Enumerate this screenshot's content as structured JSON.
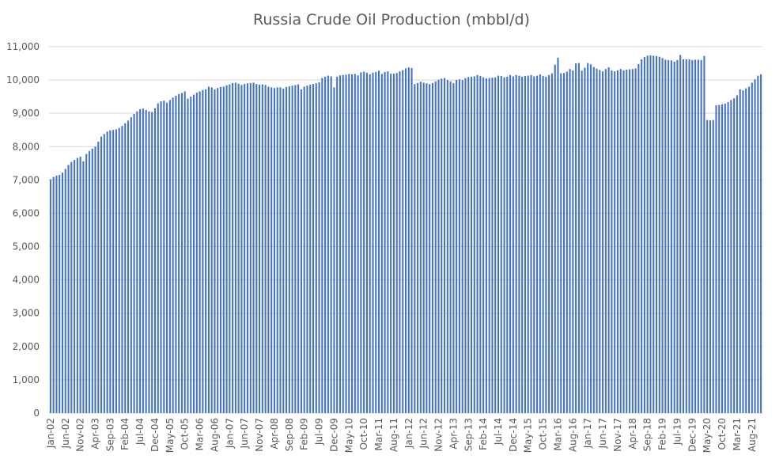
{
  "chart_data": {
    "type": "bar",
    "title": "Russia Crude Oil Production (mbbl/d)",
    "xlabel": "",
    "ylabel": "",
    "ylim": [
      0,
      11000
    ],
    "y_ticks": [
      0,
      1000,
      2000,
      3000,
      4000,
      5000,
      6000,
      7000,
      8000,
      9000,
      10000,
      11000
    ],
    "y_tick_labels": [
      "0",
      "1,000",
      "2,000",
      "3,000",
      "4,000",
      "5,000",
      "6,000",
      "7,000",
      "8,000",
      "9,000",
      "10,000",
      "11,000"
    ],
    "x_tick_labels": [
      "Jan-02",
      "Jun-02",
      "Nov-02",
      "Apr-03",
      "Sep-03",
      "Feb-04",
      "Jul-04",
      "Dec-04",
      "May-05",
      "Oct-05",
      "Mar-06",
      "Aug-06",
      "Jan-07",
      "Jun-07",
      "Nov-07",
      "Apr-08",
      "Sep-08",
      "Feb-09",
      "Jul-09",
      "Dec-09",
      "May-10",
      "Oct-10",
      "Mar-11",
      "Aug-11",
      "Jan-12",
      "Jun-12",
      "Nov-12",
      "Apr-13",
      "Sep-13",
      "Feb-14",
      "Jul-14",
      "Dec-14",
      "May-15",
      "Oct-15",
      "Mar-16",
      "Aug-16",
      "Jan-17",
      "Jun-17",
      "Nov-17",
      "Apr-18",
      "Sep-18",
      "Feb-19",
      "Jul-19",
      "Dec-19",
      "May-20",
      "Oct-20",
      "Mar-21",
      "Aug-21"
    ],
    "x_tick_every": 5,
    "grid": true,
    "legend": "none",
    "bar_color": "#4472c4",
    "grid_color": "#d9d9d9",
    "categories": [
      "Jan-02",
      "Feb-02",
      "Mar-02",
      "Apr-02",
      "May-02",
      "Jun-02",
      "Jul-02",
      "Aug-02",
      "Sep-02",
      "Oct-02",
      "Nov-02",
      "Dec-02",
      "Jan-03",
      "Feb-03",
      "Mar-03",
      "Apr-03",
      "May-03",
      "Jun-03",
      "Jul-03",
      "Aug-03",
      "Sep-03",
      "Oct-03",
      "Nov-03",
      "Dec-03",
      "Jan-04",
      "Feb-04",
      "Mar-04",
      "Apr-04",
      "May-04",
      "Jun-04",
      "Jul-04",
      "Aug-04",
      "Sep-04",
      "Oct-04",
      "Nov-04",
      "Dec-04",
      "Jan-05",
      "Feb-05",
      "Mar-05",
      "Apr-05",
      "May-05",
      "Jun-05",
      "Jul-05",
      "Aug-05",
      "Sep-05",
      "Oct-05",
      "Nov-05",
      "Dec-05",
      "Jan-06",
      "Feb-06",
      "Mar-06",
      "Apr-06",
      "May-06",
      "Jun-06",
      "Jul-06",
      "Aug-06",
      "Sep-06",
      "Oct-06",
      "Nov-06",
      "Dec-06",
      "Jan-07",
      "Feb-07",
      "Mar-07",
      "Apr-07",
      "May-07",
      "Jun-07",
      "Jul-07",
      "Aug-07",
      "Sep-07",
      "Oct-07",
      "Nov-07",
      "Dec-07",
      "Jan-08",
      "Feb-08",
      "Mar-08",
      "Apr-08",
      "May-08",
      "Jun-08",
      "Jul-08",
      "Aug-08",
      "Sep-08",
      "Oct-08",
      "Nov-08",
      "Dec-08",
      "Jan-09",
      "Feb-09",
      "Mar-09",
      "Apr-09",
      "May-09",
      "Jun-09",
      "Jul-09",
      "Aug-09",
      "Sep-09",
      "Oct-09",
      "Nov-09",
      "Dec-09",
      "Jan-10",
      "Feb-10",
      "Mar-10",
      "Apr-10",
      "May-10",
      "Jun-10",
      "Jul-10",
      "Aug-10",
      "Sep-10",
      "Oct-10",
      "Nov-10",
      "Dec-10",
      "Jan-11",
      "Feb-11",
      "Mar-11",
      "Apr-11",
      "May-11",
      "Jun-11",
      "Jul-11",
      "Aug-11",
      "Sep-11",
      "Oct-11",
      "Nov-11",
      "Dec-11",
      "Jan-12",
      "Feb-12",
      "Mar-12",
      "Apr-12",
      "May-12",
      "Jun-12",
      "Jul-12",
      "Aug-12",
      "Sep-12",
      "Oct-12",
      "Nov-12",
      "Dec-12",
      "Jan-13",
      "Feb-13",
      "Mar-13",
      "Apr-13",
      "May-13",
      "Jun-13",
      "Jul-13",
      "Aug-13",
      "Sep-13",
      "Oct-13",
      "Nov-13",
      "Dec-13",
      "Jan-14",
      "Feb-14",
      "Mar-14",
      "Apr-14",
      "May-14",
      "Jun-14",
      "Jul-14",
      "Aug-14",
      "Sep-14",
      "Oct-14",
      "Nov-14",
      "Dec-14",
      "Jan-15",
      "Feb-15",
      "Mar-15",
      "Apr-15",
      "May-15",
      "Jun-15",
      "Jul-15",
      "Aug-15",
      "Sep-15",
      "Oct-15",
      "Nov-15",
      "Dec-15",
      "Jan-16",
      "Feb-16",
      "Mar-16",
      "Apr-16",
      "May-16",
      "Jun-16",
      "Jul-16",
      "Aug-16",
      "Sep-16",
      "Oct-16",
      "Nov-16",
      "Dec-16",
      "Jan-17",
      "Feb-17",
      "Mar-17",
      "Apr-17",
      "May-17",
      "Jun-17",
      "Jul-17",
      "Aug-17",
      "Sep-17",
      "Oct-17",
      "Nov-17",
      "Dec-17",
      "Jan-18",
      "Feb-18",
      "Mar-18",
      "Apr-18",
      "May-18",
      "Jun-18",
      "Jul-18",
      "Aug-18",
      "Sep-18",
      "Oct-18",
      "Nov-18",
      "Dec-18",
      "Jan-19",
      "Feb-19",
      "Mar-19",
      "Apr-19",
      "May-19",
      "Jun-19",
      "Jul-19",
      "Aug-19",
      "Sep-19",
      "Oct-19",
      "Nov-19",
      "Dec-19",
      "Jan-20",
      "Feb-20",
      "Mar-20",
      "Apr-20",
      "May-20",
      "Jun-20",
      "Jul-20",
      "Aug-20",
      "Sep-20",
      "Oct-20",
      "Nov-20",
      "Dec-20",
      "Jan-21",
      "Feb-21",
      "Mar-21",
      "Apr-21",
      "May-21",
      "Jun-21",
      "Jul-21",
      "Aug-21",
      "Sep-21",
      "Oct-21",
      "Nov-21"
    ],
    "values": [
      7020,
      7090,
      7130,
      7150,
      7220,
      7330,
      7450,
      7540,
      7600,
      7660,
      7700,
      7560,
      7780,
      7870,
      7940,
      8000,
      8150,
      8300,
      8380,
      8450,
      8490,
      8500,
      8520,
      8560,
      8620,
      8700,
      8780,
      8880,
      8980,
      9060,
      9120,
      9140,
      9100,
      9060,
      9040,
      9150,
      9300,
      9360,
      9380,
      9320,
      9400,
      9470,
      9530,
      9580,
      9610,
      9660,
      9440,
      9500,
      9560,
      9620,
      9660,
      9700,
      9720,
      9800,
      9780,
      9720,
      9760,
      9790,
      9800,
      9840,
      9870,
      9910,
      9920,
      9890,
      9850,
      9880,
      9900,
      9910,
      9920,
      9880,
      9860,
      9870,
      9850,
      9800,
      9780,
      9760,
      9780,
      9780,
      9740,
      9790,
      9810,
      9830,
      9850,
      9870,
      9720,
      9800,
      9830,
      9860,
      9880,
      9900,
      9930,
      10060,
      10100,
      10130,
      10110,
      9780,
      10100,
      10140,
      10150,
      10160,
      10180,
      10170,
      10180,
      10140,
      10230,
      10250,
      10220,
      10170,
      10220,
      10240,
      10280,
      10180,
      10240,
      10260,
      10190,
      10190,
      10210,
      10260,
      10300,
      10350,
      10380,
      10360,
      9880,
      9910,
      9950,
      9920,
      9900,
      9880,
      9910,
      9960,
      10010,
      10040,
      10060,
      10000,
      9960,
      9910,
      10000,
      10020,
      10000,
      10060,
      10090,
      10100,
      10110,
      10150,
      10120,
      10080,
      10050,
      10060,
      10070,
      10080,
      10130,
      10120,
      10080,
      10100,
      10150,
      10110,
      10150,
      10130,
      10100,
      10120,
      10130,
      10150,
      10110,
      10130,
      10170,
      10120,
      10100,
      10150,
      10200,
      10460,
      10670,
      10200,
      10210,
      10250,
      10330,
      10290,
      10500,
      10510,
      10280,
      10370,
      10510,
      10470,
      10390,
      10340,
      10300,
      10260,
      10330,
      10380,
      10290,
      10260,
      10290,
      10330,
      10290,
      10310,
      10320,
      10330,
      10350,
      10480,
      10620,
      10690,
      10730,
      10740,
      10730,
      10720,
      10700,
      10660,
      10610,
      10600,
      10590,
      10550,
      10600,
      10750,
      10620,
      10620,
      10620,
      10600,
      10610,
      10610,
      10600,
      10720,
      8800,
      8790,
      8800,
      9240,
      9250,
      9270,
      9290,
      9340,
      9400,
      9450,
      9540,
      9720,
      9690,
      9750,
      9800,
      9920,
      10020,
      10130,
      10170
    ]
  }
}
